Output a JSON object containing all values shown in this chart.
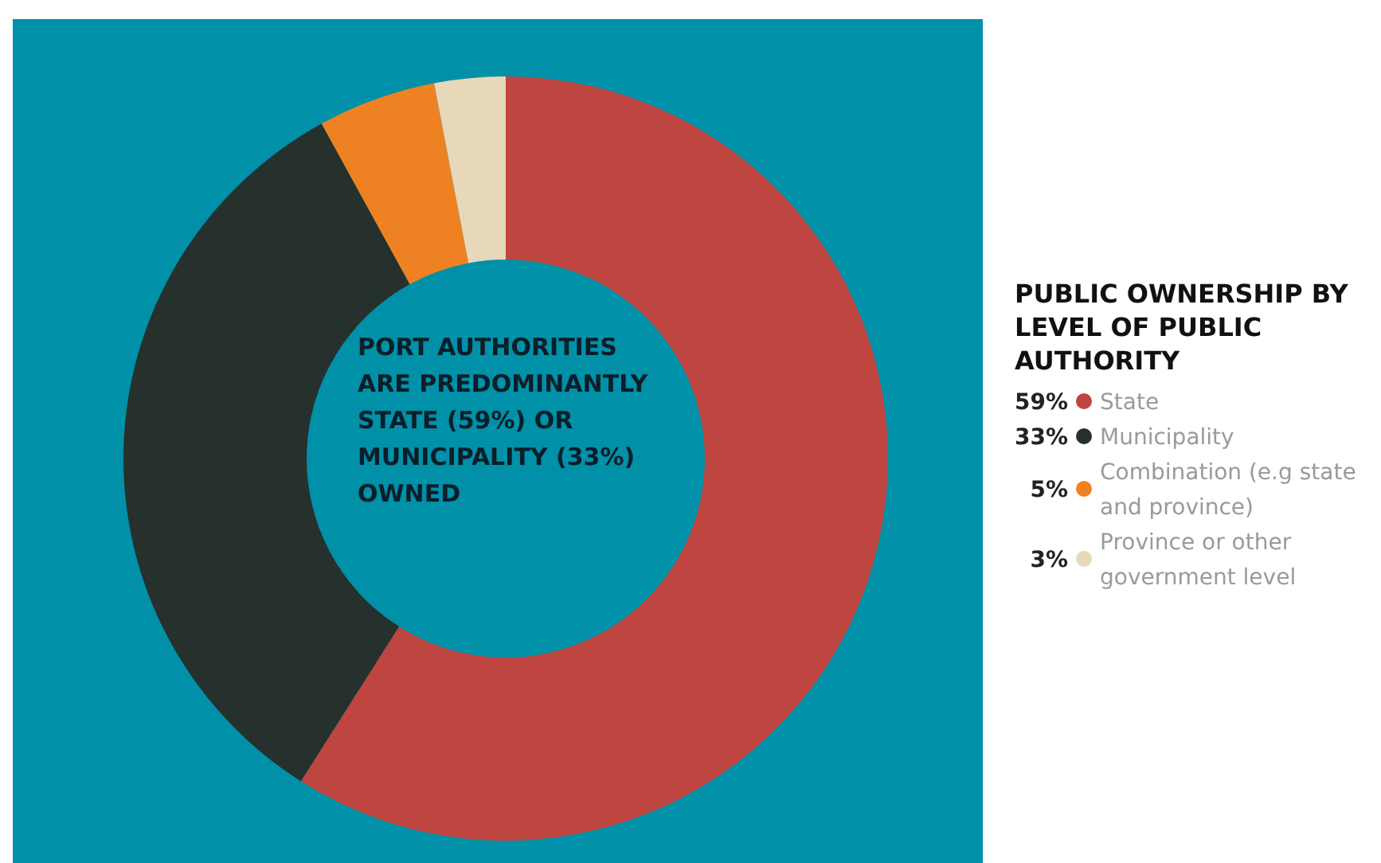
{
  "chart_data": {
    "type": "donut",
    "legend_title": "PUBLIC OWNERSHIP BY LEVEL OF PUBLIC AUTHORITY",
    "annotations": [
      "PORT AUTHORITIES ARE PREDOMINANTLY STATE (59%) OR MUNICIPALITY (33%) OWNED"
    ],
    "categories": [
      "State",
      "Municipality",
      "Combination (e.g state and province)",
      "Province or other government level"
    ],
    "values": [
      59,
      33,
      5,
      3
    ],
    "colors": [
      "#bf4540",
      "#26302c",
      "#ee8222",
      "#e6d8b8"
    ],
    "value_labels": [
      "59%",
      "33%",
      "5%",
      "3%"
    ],
    "legend": "right"
  }
}
